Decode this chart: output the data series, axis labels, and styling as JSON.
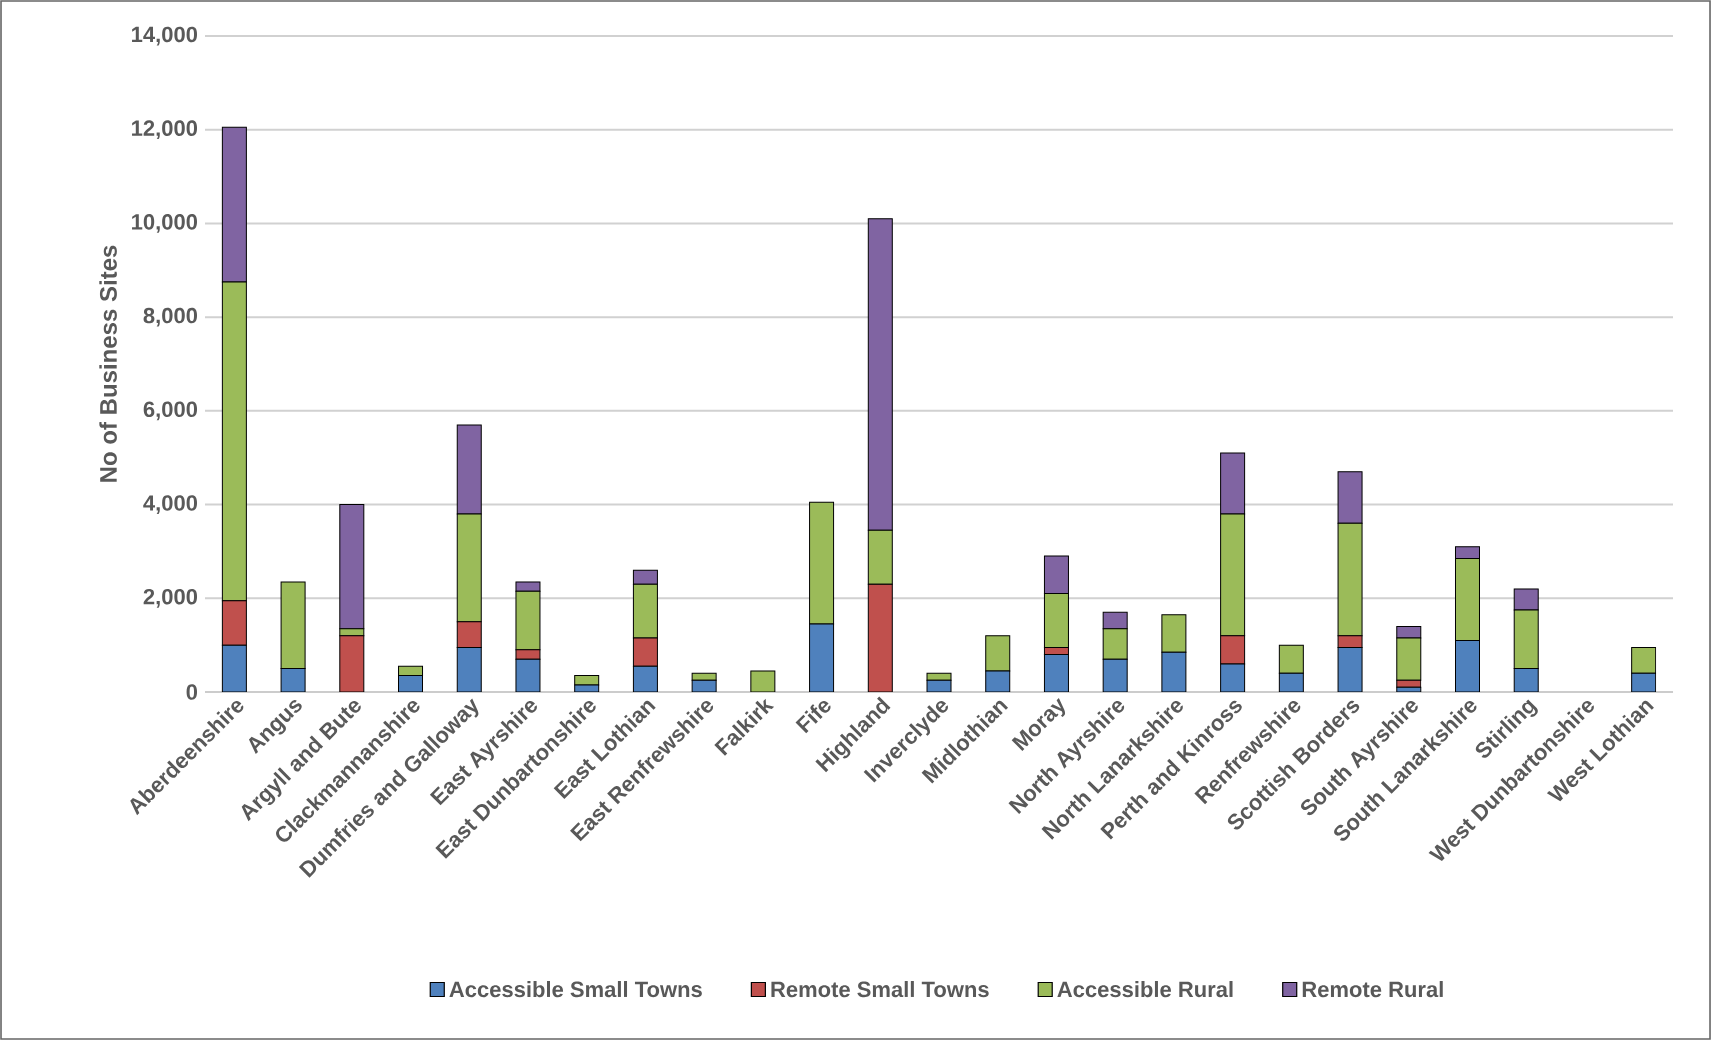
{
  "chart_data": {
    "type": "bar",
    "stacked": true,
    "ylabel": "No of Business Sites",
    "categories": [
      "Aberdeenshire",
      "Angus",
      "Argyll and Bute",
      "Clackmannanshire",
      "Dumfries and Galloway",
      "East Ayrshire",
      "East Dunbartonshire",
      "East Lothian",
      "East Renfrewshire",
      "Falkirk",
      "Fife",
      "Highland",
      "Inverclyde",
      "Midlothian",
      "Moray",
      "North Ayrshire",
      "North Lanarkshire",
      "Perth and Kinross",
      "Renfrewshire",
      "Scottish Borders",
      "South Ayrshire",
      "South Lanarkshire",
      "Stirling",
      "West Dunbartonshire",
      "West Lothian"
    ],
    "series": [
      {
        "name": "Accessible Small Towns",
        "color": "#4f81bd",
        "values": [
          1000,
          500,
          0,
          350,
          950,
          700,
          150,
          550,
          250,
          0,
          1450,
          0,
          250,
          450,
          800,
          700,
          850,
          600,
          400,
          950,
          100,
          1100,
          500,
          null,
          400
        ]
      },
      {
        "name": "Remote Small Towns",
        "color": "#c0504d",
        "values": [
          950,
          0,
          1200,
          0,
          550,
          200,
          0,
          600,
          0,
          0,
          0,
          2300,
          0,
          0,
          150,
          0,
          0,
          600,
          0,
          250,
          150,
          0,
          0,
          0,
          0
        ]
      },
      {
        "name": "Accessible Rural",
        "color": "#9bbb59",
        "values": [
          6800,
          1850,
          150,
          200,
          2300,
          1250,
          200,
          1150,
          150,
          450,
          2600,
          1150,
          150,
          750,
          1150,
          650,
          800,
          2600,
          600,
          2400,
          900,
          1750,
          1250,
          0,
          550
        ]
      },
      {
        "name": "Remote Rural",
        "color": "#8064a2",
        "values": [
          3300,
          0,
          2650,
          0,
          1900,
          200,
          0,
          300,
          0,
          0,
          0,
          6650,
          0,
          0,
          800,
          350,
          0,
          1300,
          0,
          1100,
          250,
          250,
          450,
          0,
          0
        ]
      }
    ],
    "ylim": [
      0,
      14000
    ],
    "yticks": [
      0,
      {
        "value": 2000,
        "label": "2,000"
      },
      {
        "value": 4000,
        "label": "4,000"
      },
      {
        "value": 6000,
        "label": "6,000"
      },
      {
        "value": 8000,
        "label": "8,000"
      },
      {
        "value": 10000,
        "label": "10,000"
      },
      {
        "value": 12000,
        "label": "12,000"
      },
      {
        "value": 14000,
        "label": "14,000"
      }
    ],
    "grid": "y",
    "legend": "bottom"
  }
}
